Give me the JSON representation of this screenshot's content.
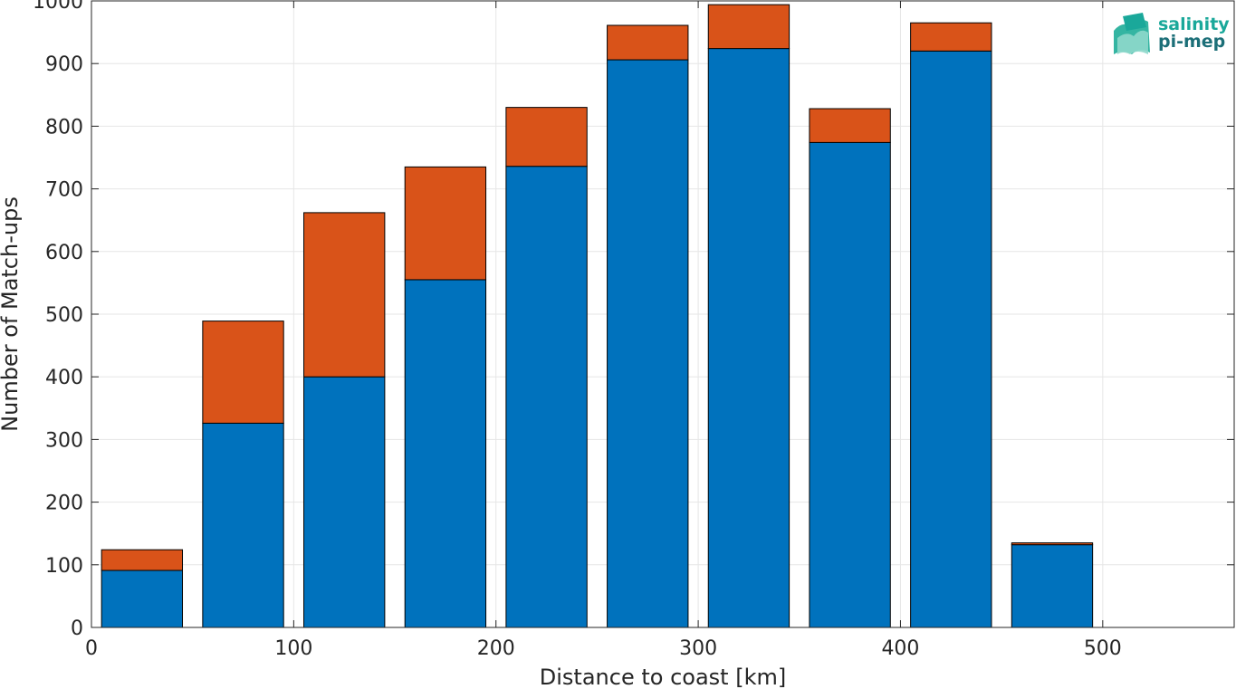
{
  "chart_data": {
    "type": "bar",
    "stacked": true,
    "x": [
      25,
      75,
      125,
      175,
      225,
      275,
      325,
      375,
      425,
      475,
      525
    ],
    "series": [
      {
        "color": "#0072BD",
        "values": [
          91,
          326,
          400,
          555,
          736,
          906,
          924,
          774,
          920,
          132,
          0
        ]
      },
      {
        "color": "#D95319",
        "values": [
          33,
          163,
          262,
          180,
          94,
          55,
          70,
          54,
          45,
          3,
          0
        ]
      }
    ],
    "xlabel": "Distance to coast [km]",
    "ylabel": "Number of Match-ups",
    "xlim": [
      0,
      565
    ],
    "ylim": [
      0,
      1000
    ],
    "xticks": [
      0,
      100,
      200,
      300,
      400,
      500
    ],
    "yticks": [
      0,
      100,
      200,
      300,
      400,
      500,
      600,
      700,
      800,
      900,
      1000
    ],
    "grid": true
  },
  "logo": {
    "line1": "salinity",
    "line2": "pi-mep",
    "color1": "#1aa89a",
    "color2": "#1c6f78"
  }
}
